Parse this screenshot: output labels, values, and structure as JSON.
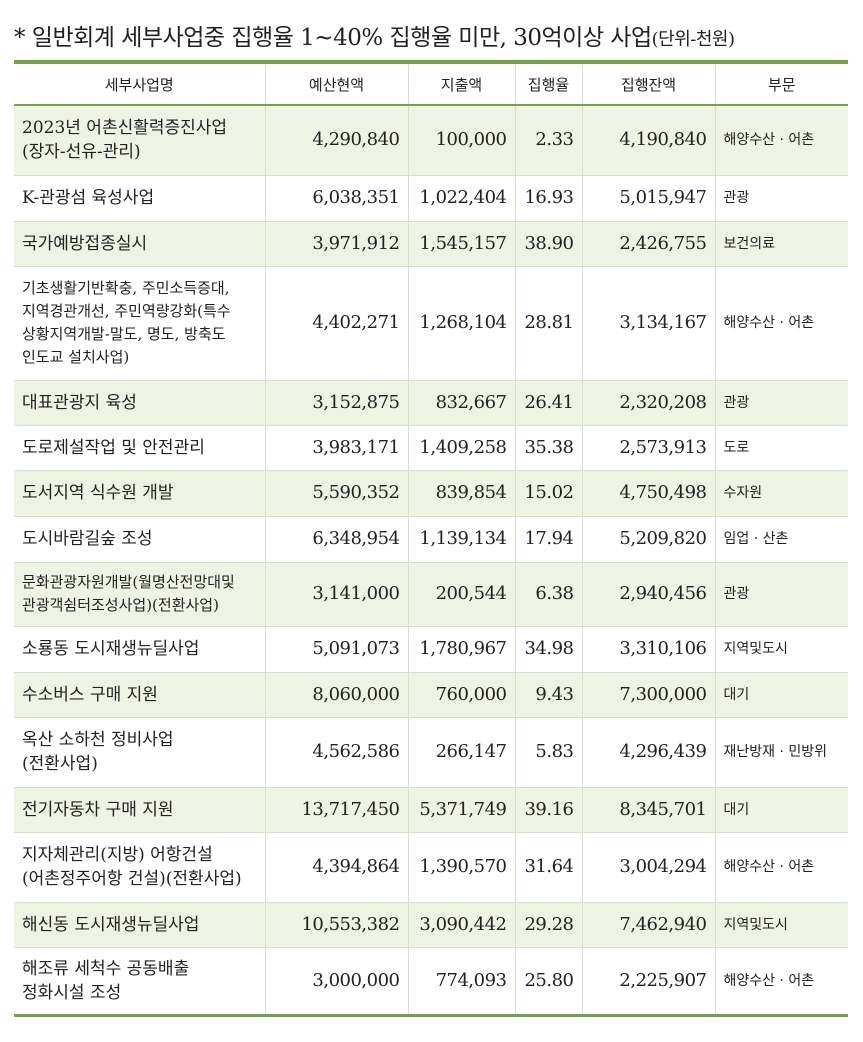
{
  "title": {
    "text": "* 일반회계 세부사업중 집행율 1~40% 집행율 미만, 30억이상 사업",
    "unit": "(단위-천원)"
  },
  "headers": [
    "세부사업명",
    "예산현액",
    "지출액",
    "집행율",
    "집행잔액",
    "부문"
  ],
  "rows": [
    {
      "name": "2023년 어촌신활력증진사업\n(장자-선유-관리)",
      "budget": "4,290,840",
      "spent": "100,000",
      "rate": "2.33",
      "remain": "4,190,840",
      "sector": "해양수산 · 어촌",
      "h": 70
    },
    {
      "name": "K-관광섬 육성사업",
      "budget": "6,038,351",
      "spent": "1,022,404",
      "rate": "16.93",
      "remain": "5,015,947",
      "sector": "관광",
      "h": 46
    },
    {
      "name": "국가예방접종실시",
      "budget": "3,971,912",
      "spent": "1,545,157",
      "rate": "38.90",
      "remain": "2,426,755",
      "sector": "보건의료",
      "h": 45
    },
    {
      "name": "기초생활기반확충,  주민소득증대,\n지역경관개선,  주민역량강화(특수\n상황지역개발-말도, 명도, 방축도\n인도교 설치사업)",
      "budget": "4,402,271",
      "spent": "1,268,104",
      "rate": "28.81",
      "remain": "3,134,167",
      "sector": "해양수산 · 어촌",
      "h": 114,
      "small": true
    },
    {
      "name": "대표관광지 육성",
      "budget": "3,152,875",
      "spent": "832,667",
      "rate": "26.41",
      "remain": "2,320,208",
      "sector": "관광",
      "h": 45
    },
    {
      "name": "도로제설작업 및 안전관리",
      "budget": "3,983,171",
      "spent": "1,409,258",
      "rate": "35.38",
      "remain": "2,573,913",
      "sector": "도로",
      "h": 45
    },
    {
      "name": "도서지역 식수원 개발",
      "budget": "5,590,352",
      "spent": "839,854",
      "rate": "15.02",
      "remain": "4,750,498",
      "sector": "수자원",
      "h": 46
    },
    {
      "name": "도시바람길숲 조성",
      "budget": "6,348,954",
      "spent": "1,139,134",
      "rate": "17.94",
      "remain": "5,209,820",
      "sector": "임업 · 산촌",
      "h": 46
    },
    {
      "name": "문화관광자원개발(월명산전망대및\n관광객쉼터조성사업)(전환사업)",
      "budget": "3,141,000",
      "spent": "200,544",
      "rate": "6.38",
      "remain": "2,940,456",
      "sector": "관광",
      "h": 64,
      "small": true
    },
    {
      "name": "소룡동 도시재생뉴딜사업",
      "budget": "5,091,073",
      "spent": "1,780,967",
      "rate": "34.98",
      "remain": "3,310,106",
      "sector": "지역및도시",
      "h": 46
    },
    {
      "name": "수소버스 구매 지원",
      "budget": "8,060,000",
      "spent": "760,000",
      "rate": "9.43",
      "remain": "7,300,000",
      "sector": "대기",
      "h": 45
    },
    {
      "name": "옥산 소하천 정비사업\n(전환사업)",
      "budget": "4,562,586",
      "spent": "266,147",
      "rate": "5.83",
      "remain": "4,296,439",
      "sector": "재난방재 · 민방위",
      "h": 70
    },
    {
      "name": "전기자동차 구매 지원",
      "budget": "13,717,450",
      "spent": "5,371,749",
      "rate": "39.16",
      "remain": "8,345,701",
      "sector": "대기",
      "h": 45
    },
    {
      "name": "지자체관리(지방) 어항건설\n(어촌정주어항 건설)(전환사업)",
      "budget": "4,394,864",
      "spent": "1,390,570",
      "rate": "31.64",
      "remain": "3,004,294",
      "sector": "해양수산 · 어촌",
      "h": 70
    },
    {
      "name": "해신동 도시재생뉴딜사업",
      "budget": "10,553,382",
      "spent": "3,090,442",
      "rate": "29.28",
      "remain": "7,462,940",
      "sector": "지역및도시",
      "h": 45
    },
    {
      "name": "해조류 세척수 공동배출\n정화시설 조성",
      "budget": "3,000,000",
      "spent": "774,093",
      "rate": "25.80",
      "remain": "2,225,907",
      "sector": "해양수산 · 어촌",
      "h": 68
    }
  ]
}
